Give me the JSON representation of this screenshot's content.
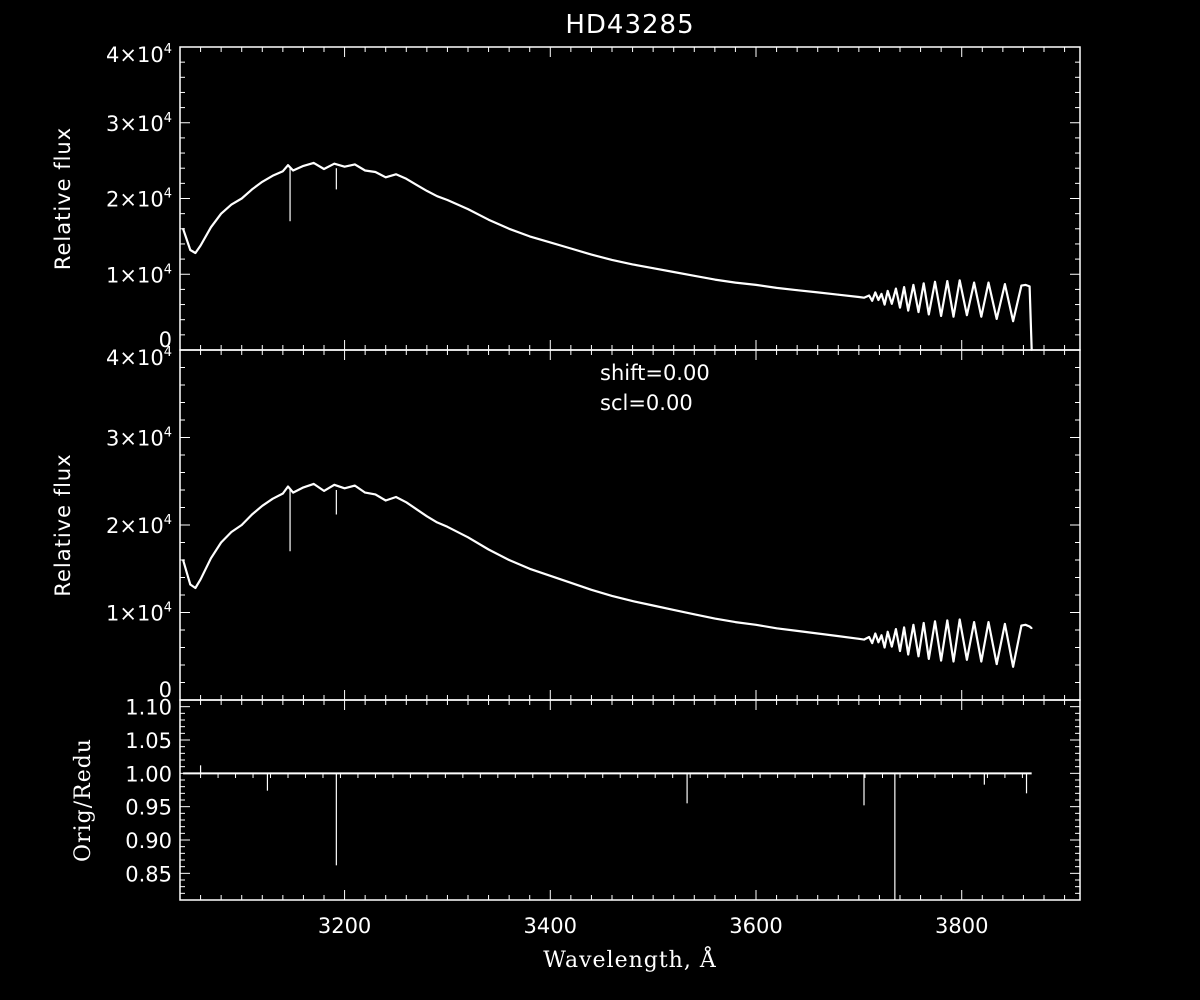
{
  "chart_data": [
    {
      "panel": "top",
      "type": "line",
      "title": "HD43285",
      "xlabel": "",
      "ylabel": "Relative flux",
      "xlim": [
        3040,
        3915
      ],
      "ylim": [
        0,
        40000
      ],
      "yticks": [
        {
          "value": 0,
          "label": "0"
        },
        {
          "value": 10000,
          "mant": "1",
          "exp": "4"
        },
        {
          "value": 20000,
          "mant": "2",
          "exp": "4"
        },
        {
          "value": 30000,
          "mant": "3",
          "exp": "4"
        },
        {
          "value": 40000,
          "mant": "4",
          "exp": "4"
        }
      ],
      "series": [
        {
          "x": [
            3043,
            3048,
            3050,
            3055,
            3060,
            3070,
            3080,
            3090,
            3100,
            3110,
            3120,
            3130,
            3140,
            3145,
            3150,
            3160,
            3170,
            3180,
            3190,
            3200,
            3210,
            3220,
            3230,
            3240,
            3250,
            3260,
            3270,
            3280,
            3290,
            3300,
            3320,
            3340,
            3360,
            3380,
            3400,
            3420,
            3440,
            3460,
            3480,
            3500,
            3520,
            3540,
            3560,
            3580,
            3600,
            3620,
            3640,
            3660,
            3680,
            3700,
            3705,
            3710,
            3713,
            3716,
            3719,
            3722,
            3725,
            3728,
            3732,
            3736,
            3740,
            3744,
            3748,
            3753,
            3758,
            3763,
            3768,
            3774,
            3780,
            3786,
            3792,
            3798,
            3805,
            3812,
            3819,
            3826,
            3834,
            3842,
            3850,
            3858,
            3862,
            3866,
            3868
          ],
          "y": [
            16000,
            14000,
            13200,
            12800,
            13800,
            16200,
            18000,
            19200,
            20000,
            21200,
            22200,
            23000,
            23600,
            24400,
            23700,
            24300,
            24700,
            23900,
            24600,
            24200,
            24500,
            23700,
            23500,
            22800,
            23200,
            22600,
            21800,
            21000,
            20300,
            19800,
            18600,
            17200,
            16000,
            15000,
            14200,
            13400,
            12600,
            11900,
            11300,
            10800,
            10300,
            9800,
            9300,
            8900,
            8600,
            8200,
            7900,
            7600,
            7300,
            7000,
            6900,
            7200,
            6500,
            7600,
            6600,
            7400,
            6000,
            7800,
            6100,
            8100,
            5600,
            8300,
            5200,
            8600,
            5000,
            8800,
            4700,
            9000,
            4500,
            9100,
            4400,
            9200,
            4600,
            8900,
            4400,
            8900,
            4100,
            8700,
            3800,
            8500,
            8600,
            8400,
            0
          ]
        }
      ]
    },
    {
      "panel": "middle",
      "type": "line",
      "xlabel": "",
      "ylabel": "Relative flux",
      "xlim": [
        3040,
        3915
      ],
      "ylim": [
        0,
        40000
      ],
      "annotations": [
        "shift=0.00",
        "scl=0.00"
      ],
      "yticks": [
        {
          "value": 0,
          "label": "0"
        },
        {
          "value": 10000,
          "mant": "1",
          "exp": "4"
        },
        {
          "value": 20000,
          "mant": "2",
          "exp": "4"
        },
        {
          "value": 30000,
          "mant": "3",
          "exp": "4"
        },
        {
          "value": 40000,
          "mant": "4",
          "exp": "4"
        }
      ],
      "series": [
        {
          "x": [
            3043,
            3048,
            3050,
            3055,
            3060,
            3070,
            3080,
            3090,
            3100,
            3110,
            3120,
            3130,
            3140,
            3145,
            3150,
            3160,
            3170,
            3180,
            3190,
            3200,
            3210,
            3220,
            3230,
            3240,
            3250,
            3260,
            3270,
            3280,
            3290,
            3300,
            3320,
            3340,
            3360,
            3380,
            3400,
            3420,
            3440,
            3460,
            3480,
            3500,
            3520,
            3540,
            3560,
            3580,
            3600,
            3620,
            3640,
            3660,
            3680,
            3700,
            3705,
            3710,
            3713,
            3716,
            3719,
            3722,
            3725,
            3728,
            3732,
            3736,
            3740,
            3744,
            3748,
            3753,
            3758,
            3763,
            3768,
            3774,
            3780,
            3786,
            3792,
            3798,
            3805,
            3812,
            3819,
            3826,
            3834,
            3842,
            3850,
            3858,
            3862,
            3866,
            3868
          ],
          "y": [
            16000,
            14000,
            13200,
            12800,
            13800,
            16200,
            18000,
            19200,
            20000,
            21200,
            22200,
            23000,
            23600,
            24400,
            23700,
            24300,
            24700,
            23900,
            24600,
            24200,
            24500,
            23700,
            23500,
            22800,
            23200,
            22600,
            21800,
            21000,
            20300,
            19800,
            18600,
            17200,
            16000,
            15000,
            14200,
            13400,
            12600,
            11900,
            11300,
            10800,
            10300,
            9800,
            9300,
            8900,
            8600,
            8200,
            7900,
            7600,
            7300,
            7000,
            6900,
            7200,
            6500,
            7600,
            6600,
            7400,
            6000,
            7800,
            6100,
            8100,
            5600,
            8300,
            5200,
            8600,
            5000,
            8800,
            4700,
            9000,
            4500,
            9100,
            4400,
            9200,
            4600,
            8900,
            4400,
            8900,
            4100,
            8700,
            3800,
            8500,
            8600,
            8400,
            8200
          ]
        }
      ]
    },
    {
      "panel": "bottom",
      "type": "line",
      "xlabel": "Wavelength, Å",
      "ylabel": "Orig/Redu",
      "xlim": [
        3040,
        3915
      ],
      "ylim": [
        0.81,
        1.11
      ],
      "yticks": [
        {
          "value": 0.85,
          "label": "0.85"
        },
        {
          "value": 0.9,
          "label": "0.90"
        },
        {
          "value": 0.95,
          "label": "0.95"
        },
        {
          "value": 1.0,
          "label": "1.00"
        },
        {
          "value": 1.05,
          "label": "1.05"
        },
        {
          "value": 1.1,
          "label": "1.10"
        }
      ],
      "xticks": [
        {
          "value": 3200,
          "label": "3200"
        },
        {
          "value": 3400,
          "label": "3400"
        },
        {
          "value": 3600,
          "label": "3600"
        },
        {
          "value": 3800,
          "label": "3800"
        }
      ],
      "baseline": 1.0,
      "spikes": [
        {
          "x": 3060,
          "y": 1.012
        },
        {
          "x": 3125,
          "y": 0.974
        },
        {
          "x": 3192,
          "y": 0.862
        },
        {
          "x": 3533,
          "y": 0.955
        },
        {
          "x": 3705,
          "y": 0.952
        },
        {
          "x": 3735,
          "y": 0.81
        },
        {
          "x": 3822,
          "y": 0.983
        },
        {
          "x": 3863,
          "y": 0.97
        }
      ]
    }
  ]
}
